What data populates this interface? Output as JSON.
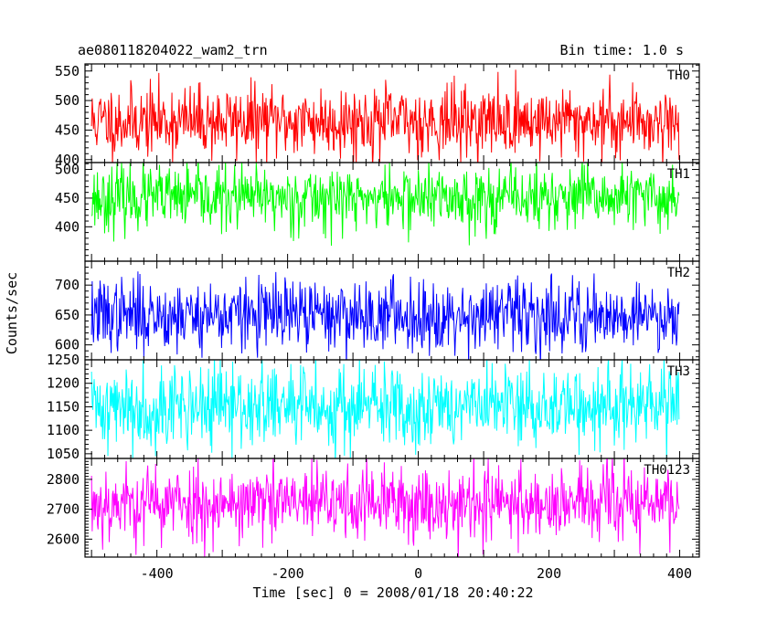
{
  "header": {
    "title": "ae080118204022_wam2_trn",
    "bin_time": "Bin time: 1.0 s"
  },
  "axes": {
    "ylabel": "Counts/sec",
    "xlabel": "Time [sec] 0 = 2008/01/18 20:40:22"
  },
  "chart_data": {
    "type": "line",
    "title": "ae080118204022_wam2_trn",
    "subtitle": "Bin time: 1.0 s",
    "xlabel": "Time [sec] 0 = 2008/01/18 20:40:22",
    "ylabel": "Counts/sec",
    "xlim": [
      -510,
      430
    ],
    "x_ticks": [
      -400,
      -200,
      0,
      200,
      400
    ],
    "x_start": -500,
    "x_end": 399,
    "x_step": 1,
    "legend": "none",
    "grid": false,
    "series": [
      {
        "name": "TH0",
        "color": "#ff0000",
        "mean": 465,
        "sd": 30,
        "ylim": [
          395,
          562
        ],
        "y_ticks": [
          400,
          450,
          500,
          550
        ],
        "seed": 11
      },
      {
        "name": "TH1",
        "color": "#00ff00",
        "mean": 450,
        "sd": 28,
        "ylim": [
          340,
          512
        ],
        "y_ticks": [
          400,
          450,
          500
        ],
        "seed": 23
      },
      {
        "name": "TH2",
        "color": "#0000ff",
        "mean": 650,
        "sd": 30,
        "ylim": [
          575,
          740
        ],
        "y_ticks": [
          600,
          650,
          700
        ],
        "seed": 37
      },
      {
        "name": "TH3",
        "color": "#00ffff",
        "mean": 1150,
        "sd": 45,
        "ylim": [
          1040,
          1250
        ],
        "y_ticks": [
          1050,
          1100,
          1150,
          1200,
          1250
        ],
        "seed": 41
      },
      {
        "name": "TH0123",
        "color": "#ff00ff",
        "mean": 2720,
        "sd": 65,
        "ylim": [
          2540,
          2870
        ],
        "y_ticks": [
          2600,
          2700,
          2800
        ],
        "seed": 53
      }
    ]
  }
}
